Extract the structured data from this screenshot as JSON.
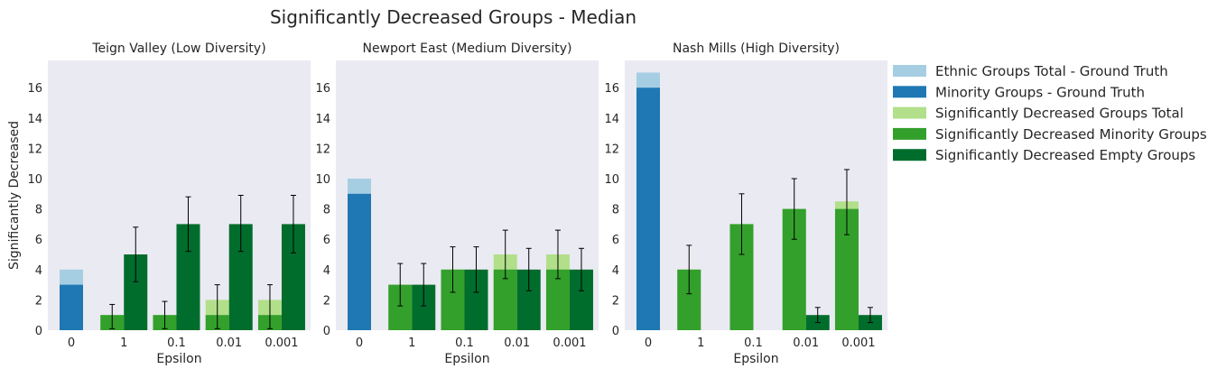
{
  "figure": {
    "title": "Significantly Decreased Groups  - Median"
  },
  "colors": {
    "panel_bg": "#EAEAF2",
    "grid": "#FFFFFF",
    "ethnic_total_gt": "#A6CEE3",
    "minority_gt": "#1F78B4",
    "sig_dec_total": "#B2DF8A",
    "sig_dec_minority": "#33A02C",
    "sig_dec_empty": "#006D2C",
    "error_bar": "#000000"
  },
  "legend": {
    "placement": "right",
    "entries": [
      {
        "key": "ethnic_total_gt",
        "label": "Ethnic Groups Total - Ground Truth"
      },
      {
        "key": "minority_gt",
        "label": "Minority Groups - Ground Truth"
      },
      {
        "key": "sig_dec_total",
        "label": "Significantly Decreased Groups Total"
      },
      {
        "key": "sig_dec_minority",
        "label": "Significantly Decreased Minority Groups"
      },
      {
        "key": "sig_dec_empty",
        "label": "Significantly Decreased Empty Groups"
      }
    ]
  },
  "chart_data": [
    {
      "type": "bar",
      "title": "Teign Valley (Low Diversity)",
      "xlabel": "Epsilon",
      "ylabel": "Significantly Decreased",
      "categories": [
        "0",
        "1",
        "0.1",
        "0.01",
        "0.001"
      ],
      "ylim": [
        0,
        17.8
      ],
      "yticks": [
        0,
        2,
        4,
        6,
        8,
        10,
        12,
        14,
        16
      ],
      "ground_truth": {
        "ethnic_total": 4,
        "minority": 3
      },
      "series": [
        {
          "key": "sig_dec_total",
          "values": [
            null,
            1,
            1,
            2,
            2
          ]
        },
        {
          "key": "sig_dec_minority",
          "values": [
            null,
            1,
            1,
            1,
            1
          ],
          "err_low": [
            null,
            0.1,
            0.1,
            0.1,
            0.1
          ],
          "err_high": [
            null,
            1.7,
            1.9,
            3.0,
            3.0
          ]
        },
        {
          "key": "sig_dec_empty",
          "values": [
            null,
            5,
            7,
            7,
            7
          ],
          "err_low": [
            null,
            3.2,
            5.2,
            5.2,
            5.1
          ],
          "err_high": [
            null,
            6.8,
            8.8,
            8.9,
            8.9
          ]
        }
      ]
    },
    {
      "type": "bar",
      "title": "Newport East (Medium Diversity)",
      "xlabel": "Epsilon",
      "ylabel": "",
      "categories": [
        "0",
        "1",
        "0.1",
        "0.01",
        "0.001"
      ],
      "ylim": [
        0,
        17.8
      ],
      "yticks": [
        0,
        2,
        4,
        6,
        8,
        10,
        12,
        14,
        16
      ],
      "ground_truth": {
        "ethnic_total": 10,
        "minority": 9
      },
      "series": [
        {
          "key": "sig_dec_total",
          "values": [
            null,
            3,
            4,
            5,
            5
          ]
        },
        {
          "key": "sig_dec_minority",
          "values": [
            null,
            3,
            4,
            4,
            4
          ],
          "err_low": [
            null,
            1.6,
            2.5,
            3.4,
            3.4
          ],
          "err_high": [
            null,
            4.4,
            5.5,
            6.6,
            6.6
          ]
        },
        {
          "key": "sig_dec_empty",
          "values": [
            null,
            3,
            4,
            4,
            4
          ],
          "err_low": [
            null,
            1.6,
            2.5,
            2.6,
            2.6
          ],
          "err_high": [
            null,
            4.4,
            5.5,
            5.4,
            5.4
          ]
        }
      ]
    },
    {
      "type": "bar",
      "title": "Nash Mills (High Diversity)",
      "xlabel": "Epsilon",
      "ylabel": "",
      "categories": [
        "0",
        "1",
        "0.1",
        "0.01",
        "0.001"
      ],
      "ylim": [
        0,
        17.8
      ],
      "yticks": [
        0,
        2,
        4,
        6,
        8,
        10,
        12,
        14,
        16
      ],
      "ground_truth": {
        "ethnic_total": 17,
        "minority": 16
      },
      "series": [
        {
          "key": "sig_dec_total",
          "values": [
            null,
            4,
            7,
            8,
            8.5
          ]
        },
        {
          "key": "sig_dec_minority",
          "values": [
            null,
            4,
            7,
            8,
            8
          ],
          "err_low": [
            null,
            2.4,
            5.0,
            6.0,
            6.3
          ],
          "err_high": [
            null,
            5.6,
            9.0,
            10.0,
            10.6
          ]
        },
        {
          "key": "sig_dec_empty",
          "values": [
            null,
            0,
            0,
            1,
            1
          ],
          "err_low": [
            null,
            null,
            null,
            0.5,
            0.5
          ],
          "err_high": [
            null,
            null,
            null,
            1.5,
            1.5
          ]
        }
      ]
    }
  ]
}
